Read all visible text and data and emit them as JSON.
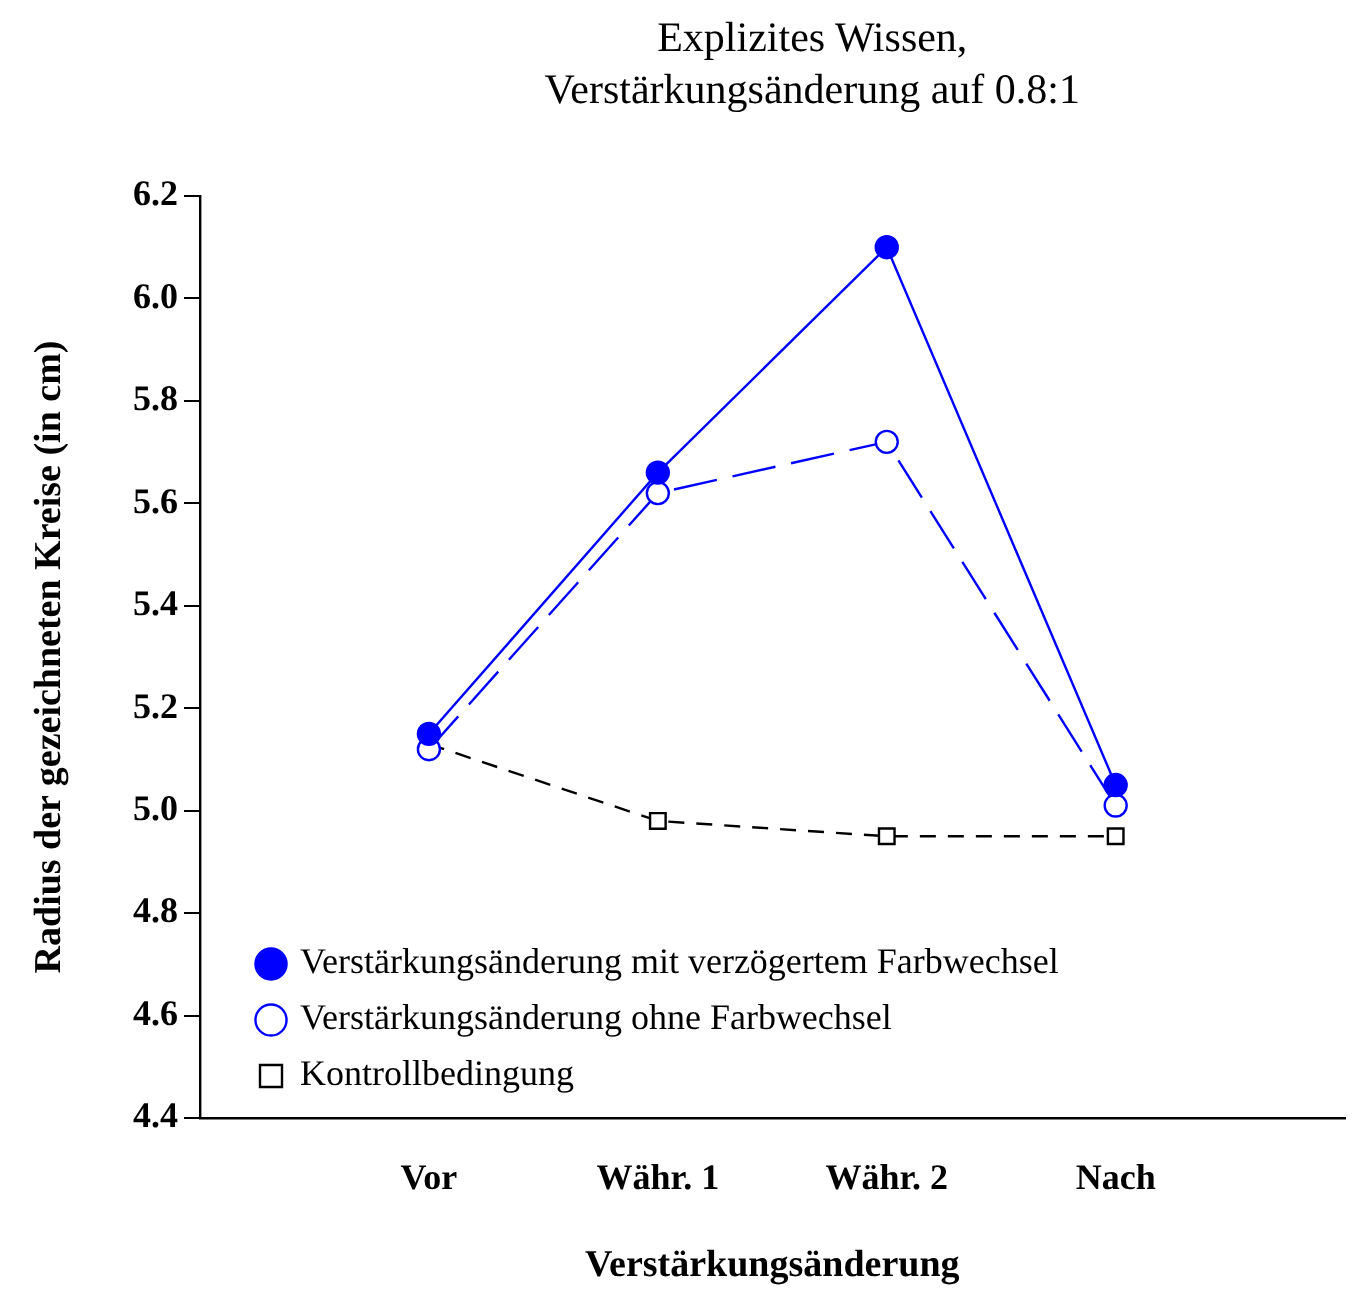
{
  "chart_data": {
    "type": "line",
    "title": [
      "Explizites Wissen,",
      "Verstärkungsänderung auf 0.8:1"
    ],
    "xlabel": "Verstärkungsänderung",
    "ylabel": "Radius der gezeichneten Kreise (in cm)",
    "categories": [
      "Vor",
      "Währ. 1",
      "Währ. 2",
      "Nach"
    ],
    "series": [
      {
        "name": "Verstärkungsänderung mit verzögertem Farbwechsel",
        "color": "#0000ff",
        "values": [
          5.15,
          5.66,
          6.1,
          5.05
        ],
        "marker": "circle",
        "line_style": "solid"
      },
      {
        "name": "Verstärkungsänderung ohne Farbwechsel",
        "color": "#0000ff",
        "values": [
          5.12,
          5.62,
          5.72,
          5.01
        ],
        "marker": "circle",
        "line_style": "dashed"
      },
      {
        "name": "Kontrollbedingung",
        "color": "#000000",
        "values": [
          5.13,
          4.98,
          4.95,
          4.95
        ],
        "marker": "square",
        "line_style": "dotted"
      }
    ],
    "ylim": [
      4.4,
      6.2
    ],
    "yticks": [
      4.4,
      4.6,
      4.8,
      {
        "value": 5,
        "label": "5.0"
      },
      5.2,
      5.4,
      5.6,
      5.8,
      {
        "value": 6,
        "label": "6.0"
      },
      6.2
    ],
    "grid": false,
    "legend": "bottom left"
  }
}
